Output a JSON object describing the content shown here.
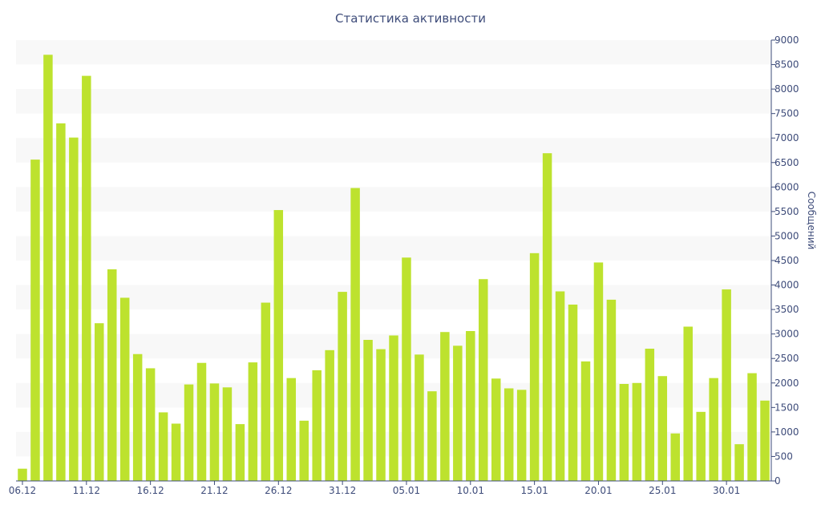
{
  "chart_data": {
    "type": "bar",
    "title": "Статистика активности",
    "ylabel": "Сообщений",
    "xlabel": "",
    "ylim": [
      0,
      9000
    ],
    "y_ticks": [
      0,
      500,
      1000,
      1500,
      2000,
      2500,
      3000,
      3500,
      4000,
      4500,
      5000,
      5500,
      6000,
      6500,
      7000,
      7500,
      8000,
      8500,
      9000
    ],
    "x_tick_labels": [
      {
        "index": 0,
        "label": "06.12"
      },
      {
        "index": 5,
        "label": "11.12"
      },
      {
        "index": 10,
        "label": "16.12"
      },
      {
        "index": 15,
        "label": "21.12"
      },
      {
        "index": 20,
        "label": "26.12"
      },
      {
        "index": 25,
        "label": "31.12"
      },
      {
        "index": 30,
        "label": "05.01"
      },
      {
        "index": 35,
        "label": "10.01"
      },
      {
        "index": 40,
        "label": "15.01"
      },
      {
        "index": 45,
        "label": "20.01"
      },
      {
        "index": 50,
        "label": "25.01"
      },
      {
        "index": 55,
        "label": "30.01"
      }
    ],
    "values": [
      250,
      6560,
      8700,
      7300,
      7010,
      8270,
      3220,
      4320,
      3740,
      2590,
      2300,
      1400,
      1170,
      1970,
      2410,
      1990,
      1910,
      1160,
      2420,
      3640,
      5530,
      2100,
      1230,
      2260,
      2670,
      3860,
      5980,
      2880,
      2690,
      2970,
      4560,
      2580,
      1830,
      3040,
      2760,
      3060,
      4120,
      2090,
      1890,
      1860,
      4650,
      6690,
      3870,
      3600,
      2440,
      4460,
      3700,
      1980,
      2000,
      2700,
      2140,
      970,
      3150,
      1410,
      2100,
      3910,
      750,
      2200,
      1640
    ],
    "bar_color": "#bde22e",
    "band_color": "#f8f8f8",
    "axis_color": "#3e4c7a",
    "grid": "alternating-bands",
    "y_axis_position": "right"
  }
}
